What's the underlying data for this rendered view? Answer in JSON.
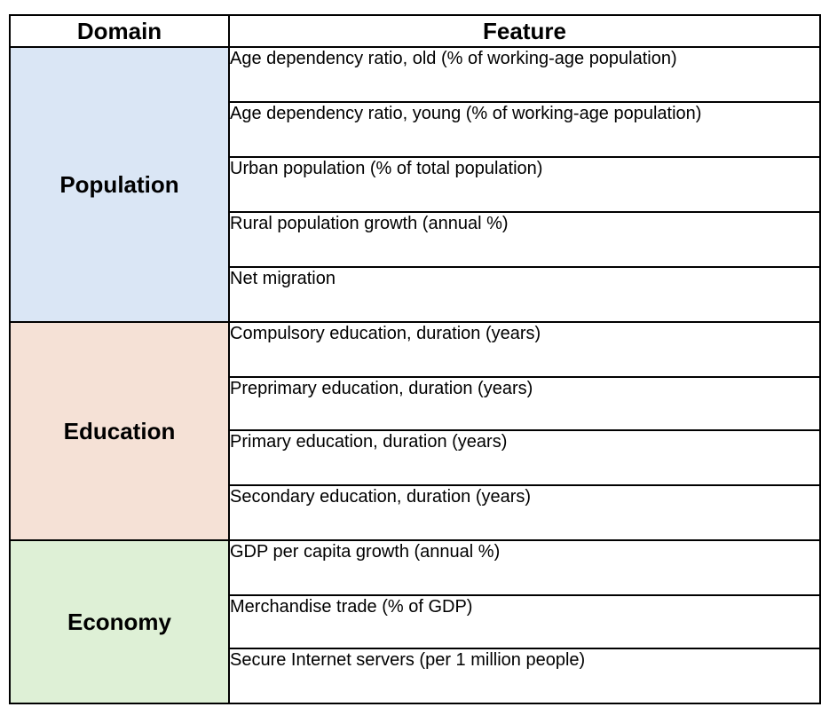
{
  "header": {
    "domain": "Domain",
    "feature": "Feature"
  },
  "groups": [
    {
      "domain": "Population",
      "color": "#dae6f5",
      "features": [
        "Age dependency ratio, old (% of working-age population)",
        "Age dependency ratio, young (% of working-age population)",
        "Urban population (% of total population)",
        "Rural population growth (annual %)",
        "Net migration"
      ]
    },
    {
      "domain": "Education",
      "color": "#f5e1d6",
      "features": [
        "Compulsory education, duration (years)",
        "Preprimary education, duration (years)",
        "Primary education, duration (years)",
        "Secondary education, duration (years)"
      ]
    },
    {
      "domain": "Economy",
      "color": "#def0d6",
      "features": [
        "GDP per capita growth (annual %)",
        "Merchandise trade (% of GDP)",
        "Secure Internet servers (per 1 million people)"
      ]
    }
  ]
}
